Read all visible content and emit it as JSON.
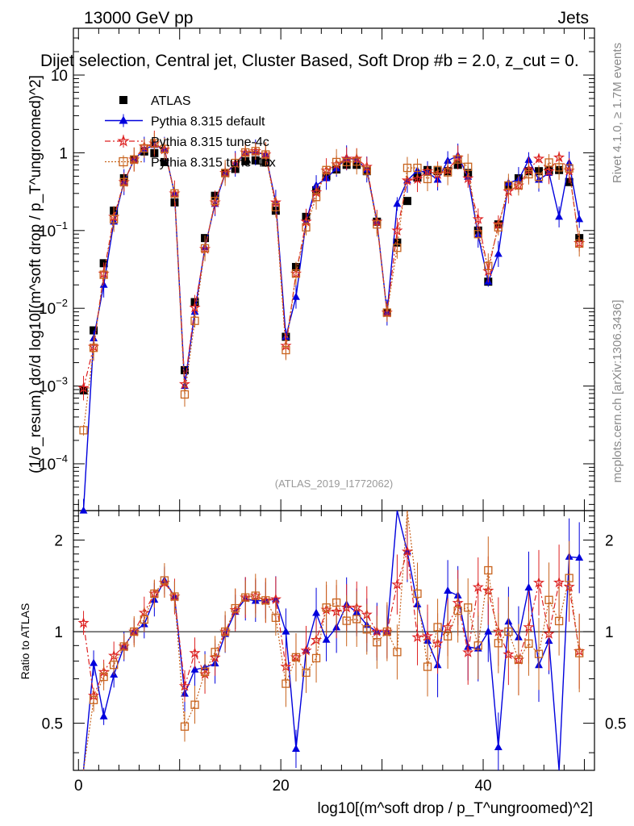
{
  "header": {
    "energy": "13000 GeV pp",
    "category": "Jets"
  },
  "side": {
    "rivet": "Rivet 4.1.0, ≥ 1.7M events",
    "site": "mcplots.cern.ch [arXiv:1306.3436]"
  },
  "chart_data": {
    "type": "line",
    "title": "Dijet selection, Central jet, Cluster Based, Soft Drop #b = 2.0, z_cut = 0.",
    "ylabel": "(1/σ_resum) dσ/d log10[(m^soft drop / p_T^ungroomed)^2]",
    "xlabel": "log10[(m^soft drop / p_T^ungroomed)^2]",
    "ratio_ylabel": "Ratio to ATLAS",
    "watermark": "(ATLAS_2019_I1772062)",
    "xlim": [
      -0.5,
      51
    ],
    "ylim": [
      2.5e-05,
      40
    ],
    "ratio_ylim": [
      0.35,
      2.5
    ],
    "y_scale": "log",
    "x_ticks": [
      {
        "v": 0,
        "label": "0"
      },
      {
        "v": 20,
        "label": "20"
      },
      {
        "v": 40,
        "label": "40"
      }
    ],
    "y_ticks": [
      {
        "v": 0.0001,
        "label": "10",
        "exp": "−4"
      },
      {
        "v": 0.001,
        "label": "10",
        "exp": "−3"
      },
      {
        "v": 0.01,
        "label": "10",
        "exp": "−2"
      },
      {
        "v": 0.1,
        "label": "10",
        "exp": "−1"
      },
      {
        "v": 1,
        "label": "1",
        "exp": ""
      },
      {
        "v": 10,
        "label": "10",
        "exp": ""
      }
    ],
    "ratio_y_ticks": [
      {
        "v": 0.5,
        "label": "0.5"
      },
      {
        "v": 1,
        "label": "1"
      },
      {
        "v": 2,
        "label": "2"
      }
    ],
    "x": [
      0.5,
      1.5,
      2.5,
      3.5,
      4.5,
      5.5,
      6.5,
      7.5,
      8.5,
      9.5,
      10.5,
      11.5,
      12.5,
      13.5,
      14.5,
      15.5,
      16.5,
      17.5,
      18.5,
      19.5,
      20.5,
      21.5,
      22.5,
      23.5,
      24.5,
      25.5,
      26.5,
      27.5,
      28.5,
      29.5,
      30.5,
      31.5,
      32.5,
      33.5,
      34.5,
      35.5,
      36.5,
      37.5,
      38.5,
      39.5,
      40.5,
      41.5,
      42.5,
      43.5,
      44.5,
      45.5,
      46.5,
      47.5,
      48.5,
      49.5
    ],
    "series": [
      {
        "name": "ATLAS",
        "color": "#000000",
        "marker": "square",
        "values": [
          0.00088,
          0.0052,
          0.038,
          0.18,
          0.47,
          0.82,
          1.04,
          0.99,
          0.76,
          0.23,
          0.0016,
          0.012,
          0.08,
          0.28,
          0.55,
          0.62,
          0.78,
          0.8,
          0.75,
          0.18,
          0.0043,
          0.034,
          0.15,
          0.33,
          0.5,
          0.61,
          0.7,
          0.7,
          0.58,
          0.13,
          0.0088,
          0.07,
          0.24,
          0.48,
          0.6,
          0.58,
          0.58,
          0.7,
          0.55,
          0.1,
          0.022,
          0.12,
          0.38,
          0.47,
          0.58,
          0.58,
          0.59,
          0.6,
          0.42,
          0.08
        ]
      },
      {
        "name": "Pythia 8.315 default",
        "color": "#0000dd",
        "marker": "triangle",
        "values": [
          2.5e-05,
          0.0041,
          0.02,
          0.13,
          0.42,
          0.82,
          1.1,
          1.26,
          1.12,
          0.3,
          0.001,
          0.009,
          0.061,
          0.22,
          0.54,
          0.72,
          1.0,
          1.01,
          0.95,
          0.23,
          0.0043,
          0.014,
          0.13,
          0.38,
          0.47,
          0.63,
          0.86,
          0.81,
          0.61,
          0.13,
          0.0088,
          0.22,
          0.44,
          0.59,
          0.56,
          0.45,
          0.79,
          0.92,
          0.49,
          0.088,
          0.022,
          0.05,
          0.41,
          0.45,
          0.81,
          0.45,
          0.55,
          0.15,
          0.74,
          0.14
        ]
      },
      {
        "name": "Pythia 8.315 tune-4c",
        "color": "#dd2222",
        "marker": "star",
        "values": [
          0.00094,
          0.0032,
          0.028,
          0.15,
          0.42,
          0.82,
          1.2,
          1.32,
          1.1,
          0.3,
          0.00106,
          0.0102,
          0.058,
          0.23,
          0.55,
          0.73,
          1.01,
          1.05,
          0.95,
          0.23,
          0.0033,
          0.028,
          0.13,
          0.31,
          0.59,
          0.71,
          0.84,
          0.84,
          0.66,
          0.13,
          0.0088,
          0.1,
          0.44,
          0.46,
          0.58,
          0.53,
          0.6,
          0.87,
          0.47,
          0.14,
          0.03,
          0.12,
          0.32,
          0.38,
          0.6,
          0.84,
          0.58,
          0.87,
          0.59,
          0.069
        ]
      },
      {
        "name": "Pythia 8.315 tune-4cx",
        "color": "#c8641e",
        "marker": "open-square",
        "values": [
          0.00027,
          0.0031,
          0.027,
          0.14,
          0.42,
          0.82,
          1.14,
          1.32,
          1.12,
          0.3,
          0.00078,
          0.0069,
          0.059,
          0.24,
          0.55,
          0.74,
          1.01,
          1.05,
          0.95,
          0.2,
          0.0029,
          0.028,
          0.11,
          0.27,
          0.6,
          0.76,
          0.76,
          0.77,
          0.59,
          0.12,
          0.0088,
          0.06,
          0.64,
          0.64,
          0.46,
          0.6,
          0.56,
          0.82,
          0.66,
          0.09,
          0.035,
          0.11,
          0.38,
          0.38,
          0.53,
          0.49,
          0.75,
          0.65,
          0.63,
          0.068
        ]
      }
    ]
  }
}
